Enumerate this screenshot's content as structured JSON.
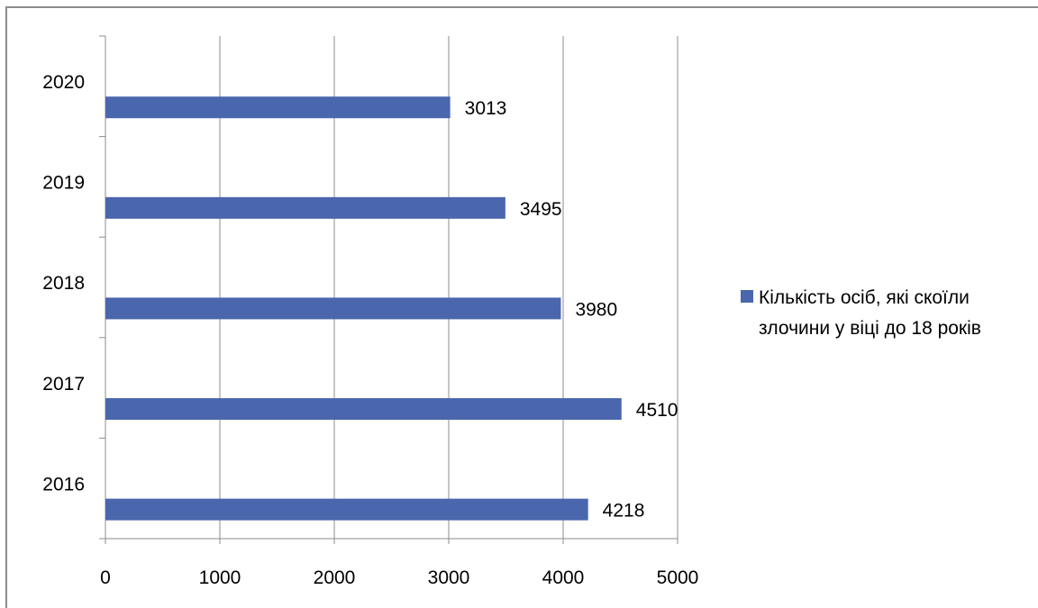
{
  "chart_data": {
    "type": "bar",
    "orientation": "horizontal",
    "categories": [
      "2016",
      "2017",
      "2018",
      "2019",
      "2020"
    ],
    "series": [
      {
        "name": "Кількість осіб, які скоїли злочини у віці до 18 років",
        "values": [
          4218,
          4510,
          3980,
          3495,
          3013
        ],
        "color": "#4a66ad"
      }
    ],
    "data_labels": [
      "4218",
      "4510",
      "3980",
      "3495",
      "3013"
    ],
    "x_ticks": [
      "0",
      "1000",
      "2000",
      "3000",
      "4000",
      "5000"
    ],
    "xlim": [
      0,
      5000
    ],
    "grid": "vertical",
    "legend": {
      "position": "right",
      "lines": [
        "Кількість осіб, які скоїли",
        "злочини у віці до 18 років"
      ]
    }
  }
}
